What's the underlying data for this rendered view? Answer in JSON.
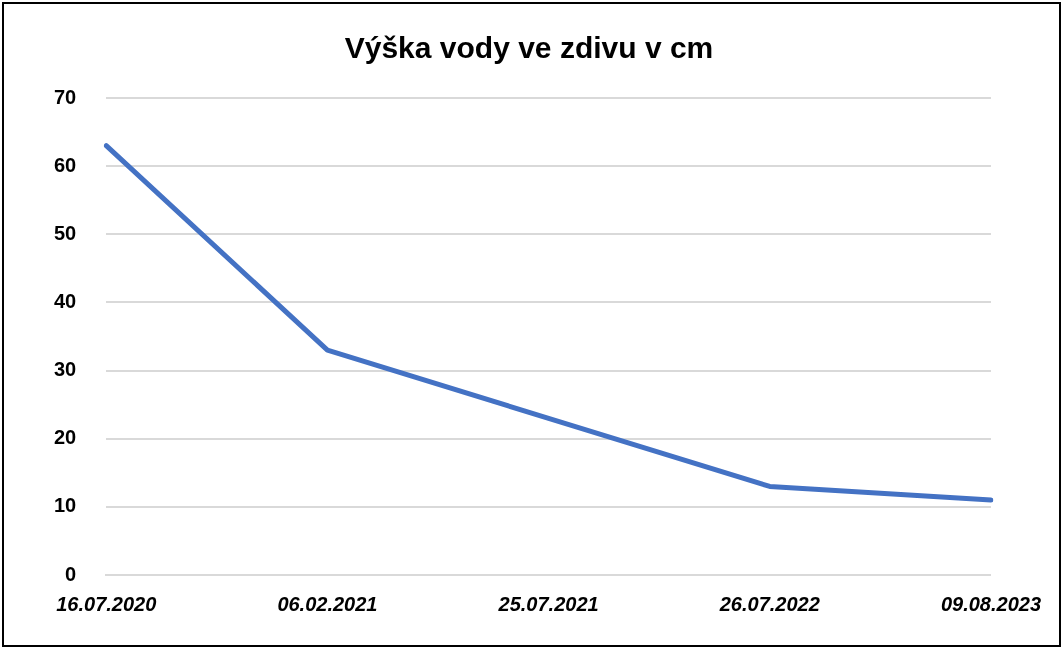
{
  "chart_data": {
    "type": "line",
    "title": "Výška vody ve zdivu v cm",
    "categories": [
      "16.07.2020",
      "06.02.2021",
      "25.07.2021",
      "26.07.2022",
      "09.08.2023"
    ],
    "series": [
      {
        "color": "#4472c4",
        "values": [
          63,
          33,
          23,
          13,
          11
        ]
      }
    ],
    "ylim": [
      0,
      70
    ],
    "yticks": [
      0,
      10,
      20,
      30,
      40,
      50,
      60,
      70
    ],
    "grid": "y",
    "legend": false,
    "marker": "none",
    "line_style": "solid"
  }
}
